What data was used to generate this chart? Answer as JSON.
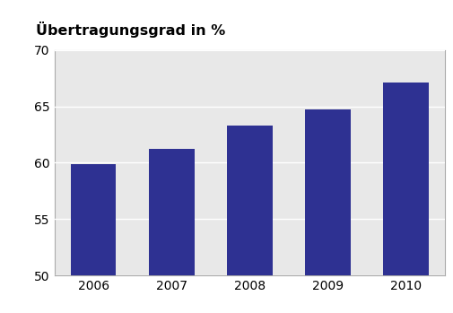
{
  "categories": [
    "2006",
    "2007",
    "2008",
    "2009",
    "2010"
  ],
  "values": [
    59.9,
    61.2,
    63.3,
    64.7,
    67.1
  ],
  "bar_color": "#2E3192",
  "title": "Übertragungsgrad in %",
  "ylim": [
    50,
    70
  ],
  "yticks": [
    50,
    55,
    60,
    65,
    70
  ],
  "title_fontsize": 11.5,
  "tick_fontsize": 10,
  "background_color": "#e8e8e8",
  "outer_background": "#ffffff",
  "bar_width": 0.58,
  "grid_color": "#ffffff",
  "spine_color": "#aaaaaa",
  "title_fontweight": "bold"
}
